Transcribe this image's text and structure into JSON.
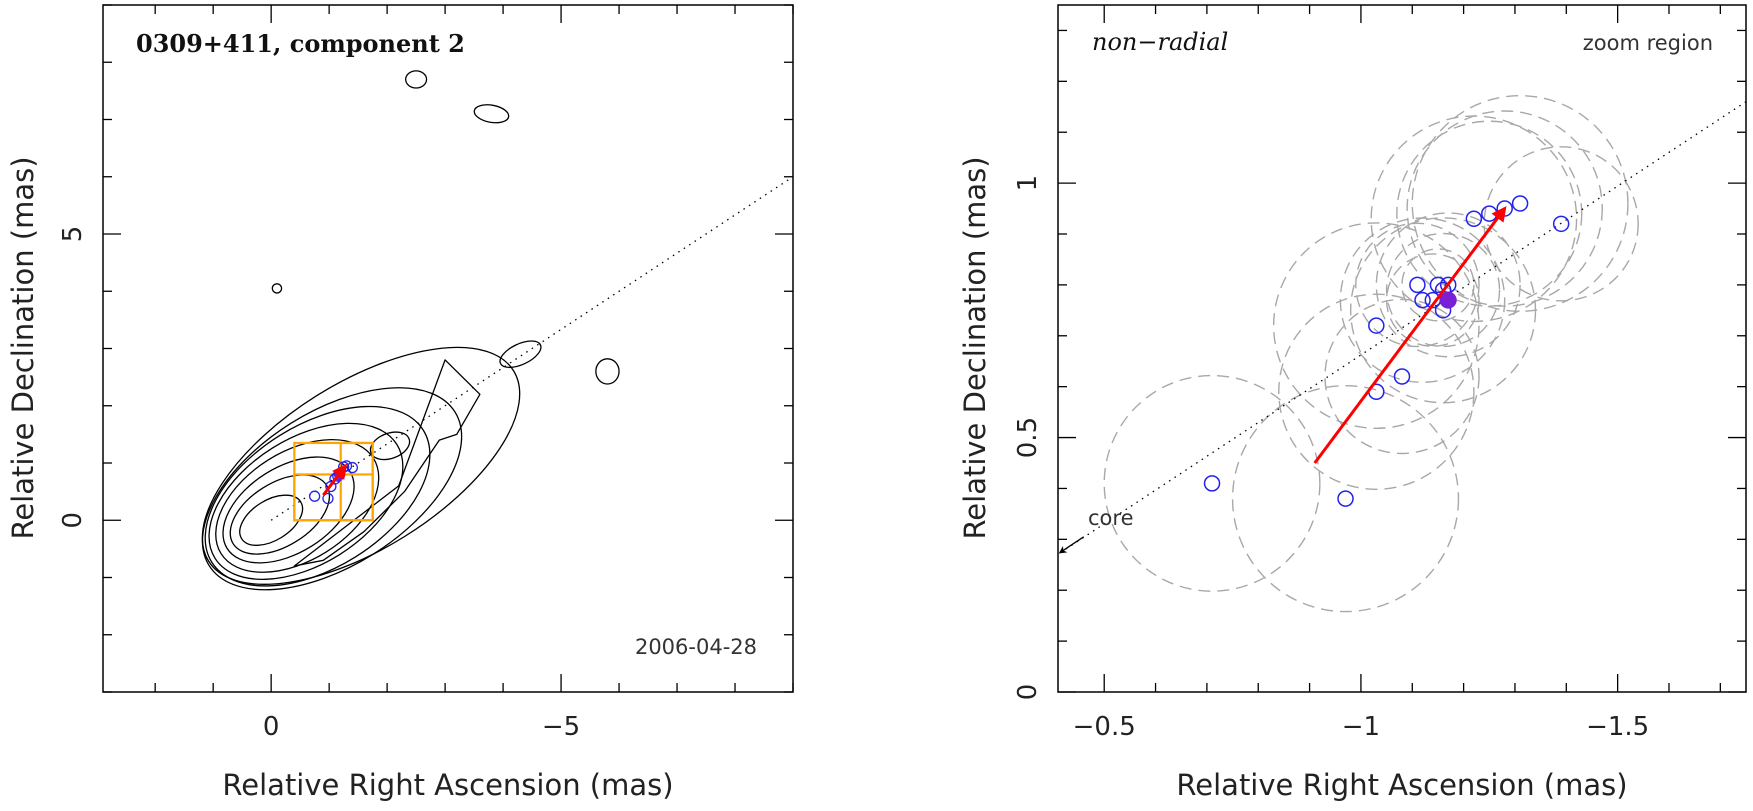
{
  "chart_data": [
    {
      "type": "scatter",
      "panel": "left",
      "title": "0309+411, component 2",
      "date_label": "2006-04-28",
      "xlabel": "Relative Right Ascension (mas)",
      "ylabel": "Relative Declination (mas)",
      "xlim": [
        2.9,
        -9.0
      ],
      "ylim": [
        -3.0,
        9.0
      ],
      "x_ticks": [
        0,
        -5
      ],
      "x_tick_labels": [
        "0",
        "−5"
      ],
      "y_ticks": [
        0,
        5
      ],
      "y_tick_labels": [
        "0",
        "5"
      ],
      "x_minor_step": 1,
      "y_minor_step": 1,
      "grid": false,
      "jet_axis": {
        "from": [
          0,
          0
        ],
        "to": [
          -9.0,
          6.0
        ],
        "style": "dotted"
      },
      "contours": [
        {
          "cx": 0.0,
          "cy": 0.0,
          "rx": 0.6,
          "ry": 0.35,
          "angle": 32
        },
        {
          "cx": -0.15,
          "cy": 0.1,
          "rx": 0.95,
          "ry": 0.55,
          "angle": 32
        },
        {
          "cx": -0.3,
          "cy": 0.18,
          "rx": 1.25,
          "ry": 0.75,
          "angle": 32
        },
        {
          "cx": -0.45,
          "cy": 0.25,
          "rx": 1.55,
          "ry": 0.95,
          "angle": 32
        },
        {
          "cx": -0.6,
          "cy": 0.33,
          "rx": 1.85,
          "ry": 1.1,
          "angle": 32
        },
        {
          "cx": -0.8,
          "cy": 0.42,
          "rx": 2.15,
          "ry": 1.25,
          "angle": 32
        },
        {
          "cx": -1.05,
          "cy": 0.55,
          "rx": 2.5,
          "ry": 1.35,
          "angle": 32
        },
        {
          "cx": -1.55,
          "cy": 0.95,
          "rx": 3.1,
          "ry": 1.45,
          "angle": 32
        },
        {
          "cx": -2.05,
          "cy": 1.3,
          "rx": 0.35,
          "ry": 0.22,
          "angle": 20
        },
        {
          "cx": -4.3,
          "cy": 2.9,
          "rx": 0.38,
          "ry": 0.18,
          "angle": 25
        },
        {
          "cx": -5.8,
          "cy": 2.6,
          "rx": 0.2,
          "ry": 0.22,
          "angle": 0
        },
        {
          "cx": -2.5,
          "cy": 7.7,
          "rx": 0.18,
          "ry": 0.15,
          "angle": 0
        },
        {
          "cx": -3.8,
          "cy": 7.1,
          "rx": 0.3,
          "ry": 0.15,
          "angle": -10
        },
        {
          "cx": -0.1,
          "cy": 4.05,
          "rx": 0.08,
          "ry": 0.08,
          "angle": 0
        }
      ],
      "extended_contour": {
        "points": [
          [
            -0.4,
            -0.8
          ],
          [
            -2.2,
            0.6
          ],
          [
            -2.6,
            1.7
          ],
          [
            -3.0,
            2.8
          ],
          [
            -3.6,
            2.2
          ],
          [
            -3.2,
            1.5
          ],
          [
            -2.9,
            1.4
          ],
          [
            -2.7,
            1.1
          ],
          [
            -2.3,
            0.5
          ],
          [
            -1.6,
            -0.2
          ],
          [
            -0.9,
            -0.7
          ]
        ]
      },
      "zoom_boxes": [
        {
          "x1": -0.4,
          "x2": -1.75,
          "y1": 0.0,
          "y2": 1.35
        },
        {
          "x1": -0.4,
          "x2": -1.75,
          "y1": 0.0,
          "y2": 0.8
        },
        {
          "x1": -1.2,
          "x2": -1.75,
          "y1": 0.0,
          "y2": 1.35
        }
      ],
      "positions": [
        {
          "x": -0.75,
          "y": 0.42
        },
        {
          "x": -0.98,
          "y": 0.38
        },
        {
          "x": -1.03,
          "y": 0.59
        },
        {
          "x": -1.1,
          "y": 0.72
        },
        {
          "x": -1.15,
          "y": 0.77
        },
        {
          "x": -1.18,
          "y": 0.8
        },
        {
          "x": -1.25,
          "y": 0.93
        },
        {
          "x": -1.3,
          "y": 0.95
        },
        {
          "x": -1.4,
          "y": 0.92
        }
      ],
      "mean_position": {
        "x": -1.17,
        "y": 0.77
      },
      "motion_vector": {
        "from": [
          -0.9,
          0.44
        ],
        "to": [
          -1.28,
          0.95
        ]
      }
    },
    {
      "type": "scatter",
      "panel": "right",
      "title": "non−radial",
      "region_label": "zoom region",
      "core_label": "core",
      "xlabel": "Relative Right Ascension (mas)",
      "ylabel": "Relative Declination (mas)",
      "xlim": [
        -0.41,
        -1.75
      ],
      "ylim": [
        0.0,
        1.35
      ],
      "x_ticks": [
        -0.5,
        -1.0,
        -1.5
      ],
      "x_tick_labels": [
        "−0.5",
        "−1",
        "−1.5"
      ],
      "y_ticks": [
        0.0,
        0.5,
        1.0
      ],
      "y_tick_labels": [
        "0",
        "0.5",
        "1"
      ],
      "x_minor_step": 0.1,
      "y_minor_step": 0.1,
      "grid": false,
      "jet_axis": {
        "from": [
          -0.41,
          0.27
        ],
        "to": [
          -1.75,
          1.16
        ],
        "style": "dotted"
      },
      "positions": [
        {
          "x": -0.71,
          "y": 0.41
        },
        {
          "x": -0.97,
          "y": 0.38
        },
        {
          "x": -1.03,
          "y": 0.59
        },
        {
          "x": -1.08,
          "y": 0.62
        },
        {
          "x": -1.03,
          "y": 0.72
        },
        {
          "x": -1.11,
          "y": 0.8
        },
        {
          "x": -1.12,
          "y": 0.77
        },
        {
          "x": -1.14,
          "y": 0.77
        },
        {
          "x": -1.15,
          "y": 0.8
        },
        {
          "x": -1.16,
          "y": 0.79
        },
        {
          "x": -1.17,
          "y": 0.8
        },
        {
          "x": -1.16,
          "y": 0.75
        },
        {
          "x": -1.22,
          "y": 0.93
        },
        {
          "x": -1.25,
          "y": 0.94
        },
        {
          "x": -1.28,
          "y": 0.95
        },
        {
          "x": -1.31,
          "y": 0.96
        },
        {
          "x": -1.39,
          "y": 0.92
        }
      ],
      "mean_position": {
        "x": -1.17,
        "y": 0.77
      },
      "uncertainty_circles": [
        {
          "x": -0.71,
          "y": 0.41,
          "r": 0.21
        },
        {
          "x": -0.97,
          "y": 0.38,
          "r": 0.22
        },
        {
          "x": -1.03,
          "y": 0.59,
          "r": 0.19
        },
        {
          "x": -1.08,
          "y": 0.62,
          "r": 0.15
        },
        {
          "x": -1.03,
          "y": 0.72,
          "r": 0.2
        },
        {
          "x": -1.11,
          "y": 0.8,
          "r": 0.12
        },
        {
          "x": -1.12,
          "y": 0.77,
          "r": 0.16
        },
        {
          "x": -1.14,
          "y": 0.77,
          "r": 0.09
        },
        {
          "x": -1.15,
          "y": 0.8,
          "r": 0.07
        },
        {
          "x": -1.16,
          "y": 0.79,
          "r": 0.11
        },
        {
          "x": -1.17,
          "y": 0.8,
          "r": 0.14
        },
        {
          "x": -1.16,
          "y": 0.75,
          "r": 0.18
        },
        {
          "x": -1.22,
          "y": 0.93,
          "r": 0.2
        },
        {
          "x": -1.25,
          "y": 0.94,
          "r": 0.18
        },
        {
          "x": -1.28,
          "y": 0.95,
          "r": 0.19
        },
        {
          "x": -1.31,
          "y": 0.96,
          "r": 0.21
        },
        {
          "x": -1.39,
          "y": 0.92,
          "r": 0.15
        }
      ],
      "motion_vector": {
        "from": [
          -0.91,
          0.45
        ],
        "to": [
          -1.28,
          0.95
        ]
      }
    }
  ]
}
